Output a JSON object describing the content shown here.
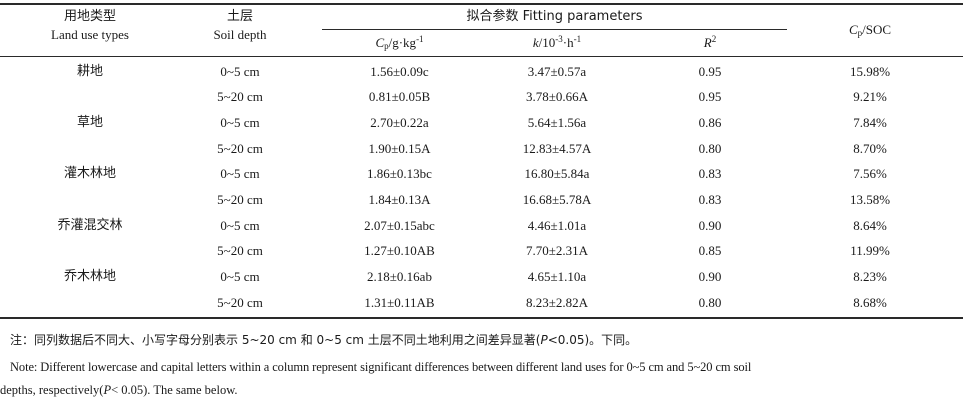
{
  "header": {
    "landuse_cn": "用地类型",
    "landuse_en": "Land use types",
    "depth_cn": "土层",
    "depth_en": "Soil depth",
    "fitting": "拟合参数 Fitting parameters",
    "cp_sym": "C",
    "cp_sub": "p",
    "cp_unit_pre": "/g·kg",
    "cp_unit_sup": "-1",
    "k_sym": "k",
    "k_unit_pre": "/10",
    "k_unit_sup": "-3",
    "k_unit_mid": "·h",
    "k_unit_sup2": "-1",
    "r_sym": "R",
    "r_sup": "2",
    "ratio_sym": "C",
    "ratio_sub": "p",
    "ratio_rest": "/SOC"
  },
  "rows": [
    {
      "landuse": "耕地",
      "depth": "0~5 cm",
      "cp": "1.56±0.09c",
      "k": "3.47±0.57a",
      "r2": "0.95",
      "ratio": "15.98%"
    },
    {
      "landuse": "",
      "depth": "5~20 cm",
      "cp": "0.81±0.05B",
      "k": "3.78±0.66A",
      "r2": "0.95",
      "ratio": "9.21%"
    },
    {
      "landuse": "草地",
      "depth": "0~5 cm",
      "cp": "2.70±0.22a",
      "k": "5.64±1.56a",
      "r2": "0.86",
      "ratio": "7.84%"
    },
    {
      "landuse": "",
      "depth": "5~20 cm",
      "cp": "1.90±0.15A",
      "k": "12.83±4.57A",
      "r2": "0.80",
      "ratio": "8.70%"
    },
    {
      "landuse": "灌木林地",
      "depth": "0~5 cm",
      "cp": "1.86±0.13bc",
      "k": "16.80±5.84a",
      "r2": "0.83",
      "ratio": "7.56%"
    },
    {
      "landuse": "",
      "depth": "5~20 cm",
      "cp": "1.84±0.13A",
      "k": "16.68±5.78A",
      "r2": "0.83",
      "ratio": "13.58%"
    },
    {
      "landuse": "乔灌混交林",
      "depth": "0~5 cm",
      "cp": "2.07±0.15abc",
      "k": "4.46±1.01a",
      "r2": "0.90",
      "ratio": "8.64%"
    },
    {
      "landuse": "",
      "depth": "5~20 cm",
      "cp": "1.27±0.10AB",
      "k": "7.70±2.31A",
      "r2": "0.85",
      "ratio": "11.99%"
    },
    {
      "landuse": "乔木林地",
      "depth": "0~5 cm",
      "cp": "2.18±0.16ab",
      "k": "4.65±1.10a",
      "r2": "0.90",
      "ratio": "8.23%"
    },
    {
      "landuse": "",
      "depth": "5~20 cm",
      "cp": "1.31±0.11AB",
      "k": "8.23±2.82A",
      "r2": "0.80",
      "ratio": "8.68%"
    }
  ],
  "notes": {
    "cn_pre": "注：同列数据后不同大、小写字母分别表示 5~20 cm 和 0~5 cm 土层不同土地利用之间差异显著(",
    "cn_p": "P",
    "cn_post": "<0.05)。下同。",
    "en_line1": "Note: Different lowercase and capital letters within a column represent significant differences between different land uses for 0~5 cm and 5~20 cm soil",
    "en_line2_pre": "depths, respectively(",
    "en_p": "P",
    "en_line2_post": "< 0.05). The same below."
  }
}
